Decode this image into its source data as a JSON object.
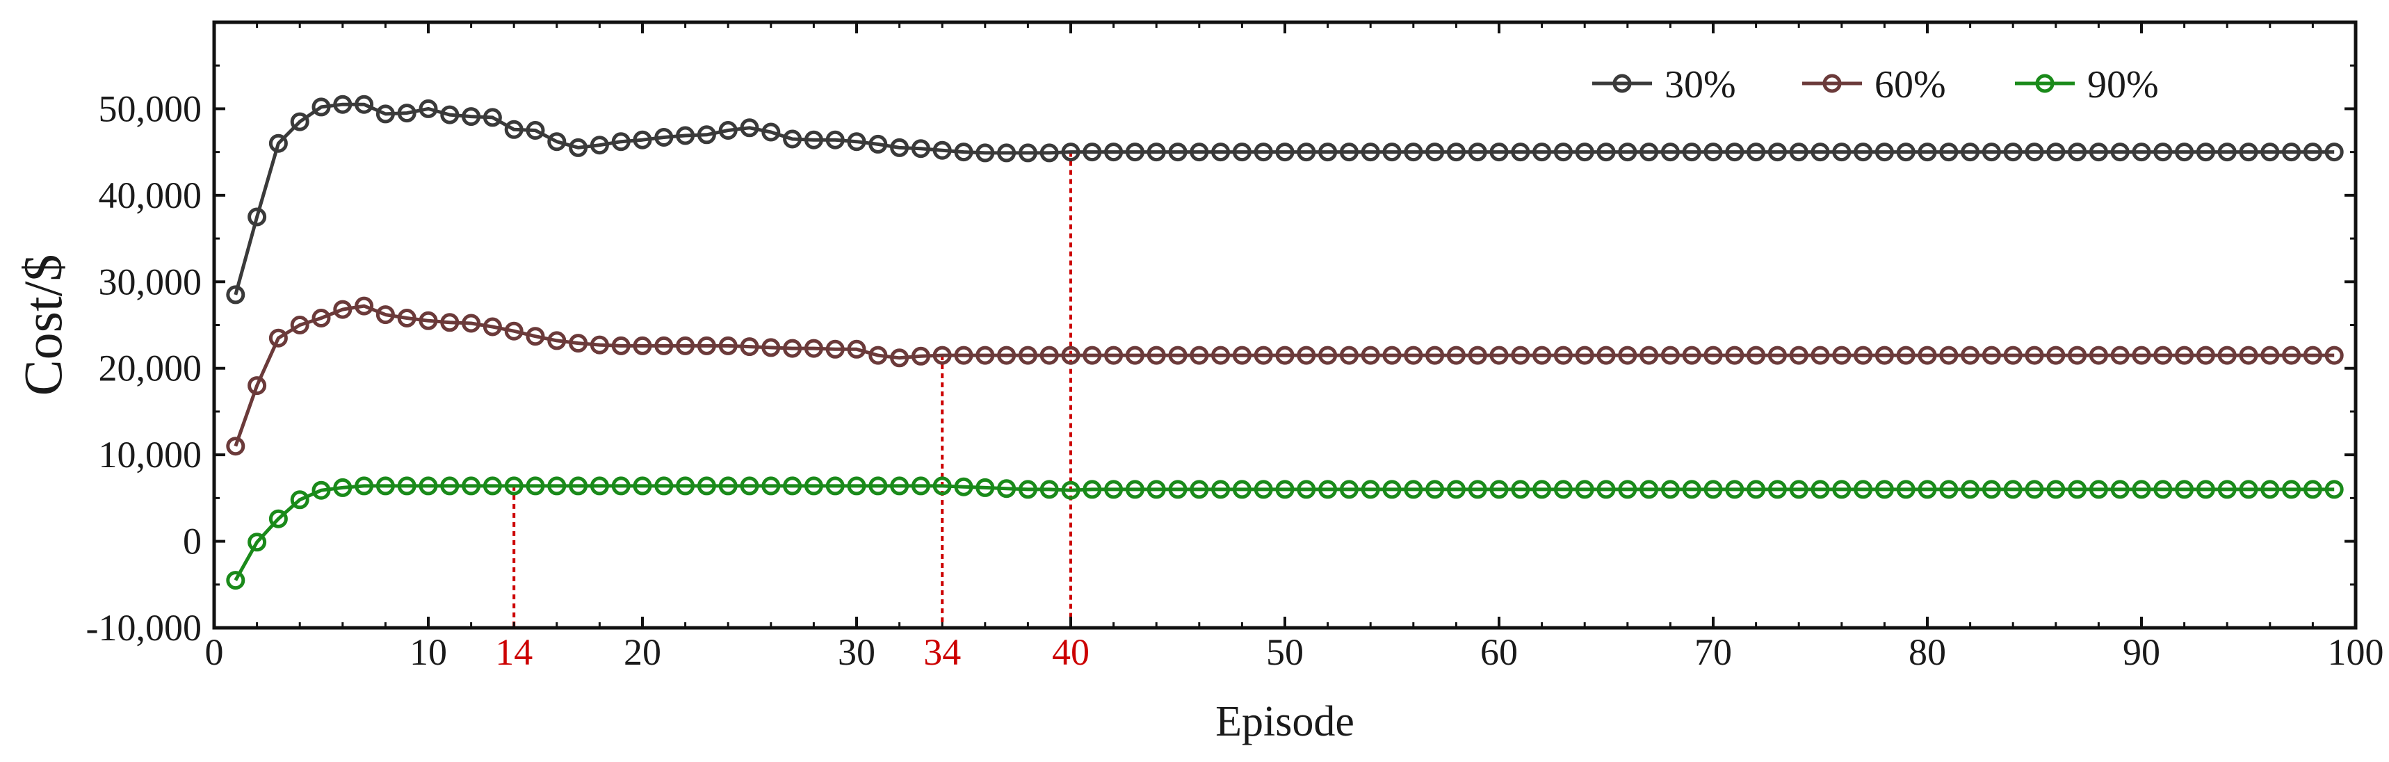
{
  "chart_data": {
    "type": "line",
    "xlabel": "Episode",
    "ylabel": "Cost/$",
    "xlim": [
      0,
      100
    ],
    "ylim": [
      -10000,
      60000
    ],
    "xticks": [
      0,
      10,
      20,
      30,
      40,
      50,
      60,
      70,
      80,
      90,
      100
    ],
    "xtick_labels": [
      "0",
      "10",
      "20",
      "30",
      "",
      "50",
      "60",
      "70",
      "80",
      "90",
      "100"
    ],
    "yticks": [
      -10000,
      0,
      10000,
      20000,
      30000,
      40000,
      50000
    ],
    "ytick_labels": [
      "-10,000",
      "0",
      "10,000",
      "20,000",
      "30,000",
      "40,000",
      "50,000"
    ],
    "grid": false,
    "legend_position": "top-right",
    "series": [
      {
        "name": "30%",
        "color": "#3a3a3a",
        "head": [
          28500,
          37500,
          46000,
          48500,
          50200,
          50500,
          50500,
          49400,
          49500,
          50000,
          49300,
          49100,
          49000,
          47600,
          47500,
          46200,
          45500,
          45800,
          46200,
          46400,
          46700,
          46900,
          47000,
          47500,
          47800,
          47300,
          46500,
          46400,
          46400,
          46200,
          45900,
          45500,
          45400,
          45200,
          45000,
          44900,
          44900,
          44900,
          44900
        ],
        "tail_value": 45000
      },
      {
        "name": "60%",
        "color": "#6b3a3a",
        "head": [
          11000,
          18000,
          23500,
          25000,
          25800,
          26800,
          27200,
          26200,
          25800,
          25500,
          25300,
          25200,
          24800,
          24300,
          23700,
          23200,
          22900,
          22700,
          22600,
          22600,
          22600,
          22600,
          22600,
          22600,
          22500,
          22400,
          22300,
          22300,
          22200,
          22200,
          21500,
          21200,
          21400,
          21500
        ],
        "tail_value": 21500
      },
      {
        "name": "90%",
        "color": "#1a8a1a",
        "head": [
          -4500,
          -100,
          2600,
          4800,
          5900,
          6200,
          6400,
          6400,
          6400,
          6400,
          6400,
          6400,
          6400,
          6400,
          6400,
          6400,
          6400,
          6400,
          6400,
          6400,
          6400,
          6400,
          6400,
          6400,
          6400,
          6400,
          6400,
          6400,
          6400,
          6400,
          6400,
          6400,
          6400,
          6400,
          6300,
          6200,
          6100,
          6000,
          6000,
          5900
        ],
        "tail_value": 6000
      }
    ],
    "convergence_markers": [
      {
        "label": "14",
        "x": 14,
        "y": 6400
      },
      {
        "label": "34",
        "x": 34,
        "y": 21500
      },
      {
        "label": "40",
        "x": 40,
        "y": 45000
      }
    ],
    "marker_color": "#cc0000",
    "episodes_start": 1,
    "episodes_end": 99
  }
}
